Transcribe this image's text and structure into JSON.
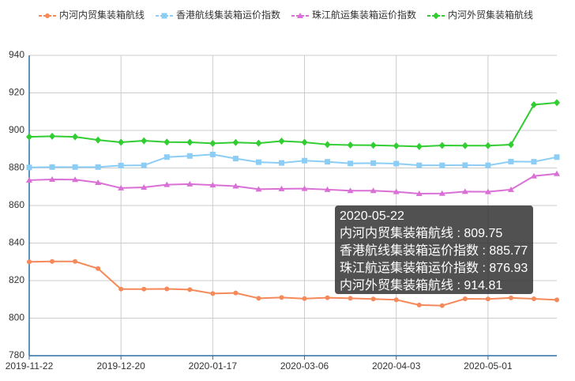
{
  "chart_data": {
    "type": "line",
    "categories": [
      "2019-11-22",
      null,
      null,
      null,
      "2019-12-20",
      null,
      null,
      null,
      "2020-01-17",
      null,
      null,
      null,
      "2020-03-06",
      null,
      null,
      null,
      "2020-04-03",
      null,
      null,
      null,
      "2020-05-01",
      null,
      null,
      null
    ],
    "series": [
      {
        "name": "内河内贸集装箱航线",
        "color": "#f5895a",
        "marker": "circle",
        "values": [
          830,
          830.2,
          830.2,
          826.4,
          815.5,
          815.5,
          815.6,
          815.2,
          813.1,
          813.4,
          810.6,
          811,
          810.4,
          810.9,
          810.6,
          810.2,
          809.8,
          807,
          806.7,
          810.3,
          810.2,
          810.8,
          810.3,
          809.75
        ]
      },
      {
        "name": "香港航线集装箱运价指数",
        "color": "#8ccdf5",
        "marker": "square",
        "values": [
          880.3,
          880.5,
          880.5,
          880.5,
          881.3,
          881.4,
          885.8,
          886.4,
          887.2,
          885,
          883.1,
          882.7,
          883.9,
          883.3,
          882.4,
          882.6,
          882.3,
          881.4,
          881.4,
          881.5,
          881.4,
          883.4,
          883.3,
          885.77
        ]
      },
      {
        "name": "珠江航运集装箱运价指数",
        "color": "#da70d6",
        "marker": "triangle",
        "values": [
          873.5,
          873.9,
          873.8,
          872.2,
          869.3,
          869.7,
          871.1,
          871.4,
          870.9,
          870.3,
          868.7,
          868.9,
          869,
          868.5,
          867.9,
          867.9,
          867.3,
          866.3,
          866.4,
          867.4,
          867.3,
          868.5,
          875.7,
          876.93
        ]
      },
      {
        "name": "内河外贸集装箱航线",
        "color": "#32cd32",
        "marker": "diamond",
        "values": [
          896.6,
          896.9,
          896.6,
          894.9,
          893.7,
          894.5,
          893.8,
          893.7,
          893.1,
          893.6,
          893.2,
          894.3,
          893.7,
          892.5,
          892.2,
          892.1,
          891.8,
          891.4,
          892,
          891.9,
          891.9,
          892.4,
          913.7,
          914.81
        ]
      }
    ],
    "ylim": [
      780,
      940
    ],
    "yticks": [
      780,
      800,
      820,
      840,
      860,
      880,
      900,
      920,
      940
    ],
    "grid": true,
    "tooltip": {
      "title": "2020-05-22",
      "separator": " : "
    }
  }
}
